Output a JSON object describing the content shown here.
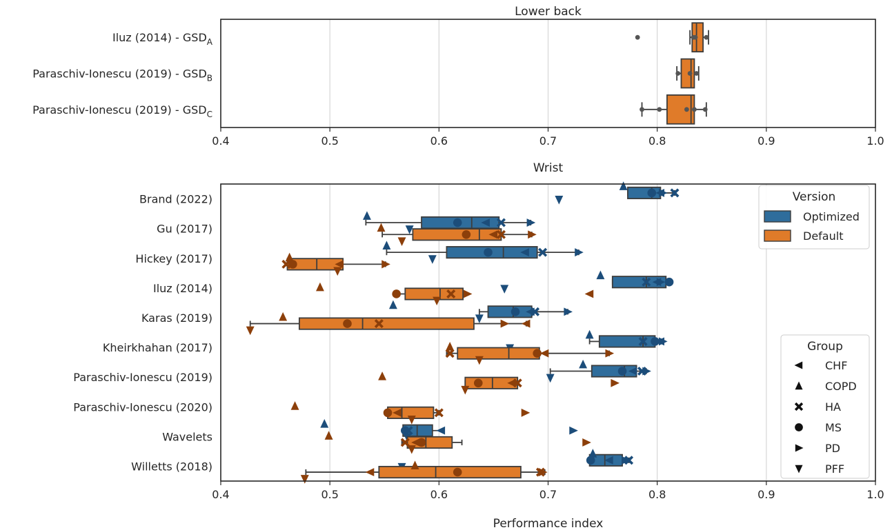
{
  "colors": {
    "optimized": "#2f6d9c",
    "default": "#e07b29",
    "optimized_marker": "#1c4d7a",
    "default_marker": "#8c3f0a",
    "lower_back_marker": "#555555",
    "grid": "#d6d6d6",
    "box_edge": "#3d3d3d"
  },
  "chart_data": [
    {
      "type": "box",
      "title": "Lower back",
      "xlabel": "",
      "xlim": [
        0.4,
        1.0
      ],
      "xticks": [
        "0.4",
        "0.5",
        "0.6",
        "0.7",
        "0.8",
        "0.9",
        "1.0"
      ],
      "categories": [
        {
          "name": "Iluz (2014) - GSD",
          "sub": "A"
        },
        {
          "name": "Paraschiv-Ionescu (2019) - GSD",
          "sub": "B"
        },
        {
          "name": "Paraschiv-Ionescu (2019) - GSD",
          "sub": "C"
        }
      ],
      "boxes": [
        {
          "whisker_low": 0.83,
          "q1": 0.832,
          "median": 0.836,
          "q3": 0.842,
          "whisker_high": 0.847,
          "points": [
            0.782,
            0.833,
            0.835,
            0.845
          ]
        },
        {
          "whisker_low": 0.818,
          "q1": 0.822,
          "median": 0.831,
          "q3": 0.834,
          "whisker_high": 0.838,
          "points": [
            0.819,
            0.83,
            0.836
          ]
        },
        {
          "whisker_low": 0.786,
          "q1": 0.809,
          "median": 0.831,
          "q3": 0.834,
          "whisker_high": 0.845,
          "points": [
            0.786,
            0.802,
            0.827,
            0.834,
            0.844
          ]
        }
      ]
    },
    {
      "type": "box",
      "title": "Wrist",
      "xlabel": "Performance index",
      "xlim": [
        0.4,
        1.0
      ],
      "xticks": [
        "0.4",
        "0.5",
        "0.6",
        "0.7",
        "0.8",
        "0.9",
        "1.0"
      ],
      "categories": [
        "Brand (2022)",
        "Gu (2017)",
        "Hickey (2017)",
        "Iluz (2014)",
        "Karas (2019)",
        "Kheirkhahan (2017)",
        "Paraschiv-Ionescu (2019)",
        "Paraschiv-Ionescu (2020)",
        "Wavelets",
        "Willetts (2018)"
      ],
      "series": [
        {
          "name": "Optimized",
          "boxes": [
            {
              "whisker_low": 0.773,
              "q1": 0.773,
              "median": 0.795,
              "q3": 0.803,
              "whisker_high": 0.816,
              "points": {
                "CHF": 0.803,
                "COPD": 0.769,
                "HA": 0.816,
                "MS": 0.795,
                "PD": 0.805,
                "PFF": 0.71
              }
            },
            {
              "whisker_low": 0.533,
              "q1": 0.584,
              "median": 0.63,
              "q3": 0.655,
              "whisker_high": 0.684,
              "points": {
                "CHF": 0.643,
                "COPD": 0.534,
                "HA": 0.657,
                "MS": 0.617,
                "PD": 0.684,
                "PFF": 0.573
              }
            },
            {
              "whisker_low": 0.552,
              "q1": 0.607,
              "median": 0.659,
              "q3": 0.69,
              "whisker_high": 0.728,
              "points": {
                "CHF": 0.679,
                "COPD": 0.552,
                "HA": 0.695,
                "MS": 0.645,
                "PD": 0.728,
                "PFF": 0.594
              }
            },
            {
              "whisker_low": 0.759,
              "q1": 0.759,
              "median": 0.79,
              "q3": 0.808,
              "whisker_high": 0.811,
              "points": {
                "CHF": 0.8,
                "COPD": 0.748,
                "HA": 0.79,
                "MS": 0.811,
                "PD": 0.803,
                "PFF": 0.66
              }
            },
            {
              "whisker_low": 0.637,
              "q1": 0.645,
              "median": 0.668,
              "q3": 0.685,
              "whisker_high": 0.718,
              "points": {
                "CHF": 0.684,
                "COPD": 0.558,
                "HA": 0.688,
                "MS": 0.67,
                "PD": 0.718,
                "PFF": 0.637
              }
            },
            {
              "whisker_low": 0.738,
              "q1": 0.747,
              "median": 0.787,
              "q3": 0.798,
              "whisker_high": 0.805,
              "points": {
                "CHF": 0.803,
                "COPD": 0.738,
                "HA": 0.787,
                "MS": 0.798,
                "PD": 0.805,
                "PFF": 0.665
              }
            },
            {
              "whisker_low": 0.702,
              "q1": 0.74,
              "median": 0.77,
              "q3": 0.781,
              "whisker_high": 0.79,
              "points": {
                "CHF": 0.778,
                "COPD": 0.732,
                "HA": 0.786,
                "MS": 0.768,
                "PD": 0.79,
                "PFF": 0.702
              }
            },
            {
              "whisker_low": null,
              "q1": null,
              "median": null,
              "q3": null,
              "whisker_high": null,
              "points": {}
            },
            {
              "whisker_low": 0.567,
              "q1": 0.567,
              "median": 0.58,
              "q3": 0.594,
              "whisker_high": 0.604,
              "points": {
                "CHF": 0.602,
                "COPD": 0.495,
                "HA": 0.572,
                "MS": 0.569,
                "PD": 0.723,
                "PFF": 0.571
              }
            },
            {
              "whisker_low": 0.738,
              "q1": 0.738,
              "median": 0.752,
              "q3": 0.768,
              "whisker_high": 0.774,
              "points": {
                "CHF": 0.756,
                "COPD": 0.741,
                "HA": 0.774,
                "MS": 0.739,
                "PD": 0.771,
                "PFF": 0.566
              }
            }
          ]
        },
        {
          "name": "Default",
          "boxes": [
            {
              "whisker_low": null,
              "q1": null,
              "median": null,
              "q3": null,
              "whisker_high": null,
              "points": {}
            },
            {
              "whisker_low": 0.548,
              "q1": 0.576,
              "median": 0.637,
              "q3": 0.657,
              "whisker_high": 0.685,
              "points": {
                "CHF": 0.65,
                "COPD": 0.547,
                "HA": 0.657,
                "MS": 0.625,
                "PD": 0.685,
                "PFF": 0.566
              }
            },
            {
              "whisker_low": 0.461,
              "q1": 0.461,
              "median": 0.488,
              "q3": 0.512,
              "whisker_high": 0.551,
              "points": {
                "CHF": 0.509,
                "COPD": 0.463,
                "HA": 0.46,
                "MS": 0.466,
                "PD": 0.551,
                "PFF": 0.507
              }
            },
            {
              "whisker_low": 0.561,
              "q1": 0.569,
              "median": 0.601,
              "q3": 0.622,
              "whisker_high": 0.622,
              "points": {
                "CHF": 0.738,
                "COPD": 0.491,
                "HA": 0.611,
                "MS": 0.561,
                "PD": 0.626,
                "PFF": 0.598
              }
            },
            {
              "whisker_low": 0.427,
              "q1": 0.472,
              "median": 0.53,
              "q3": 0.632,
              "whisker_high": 0.68,
              "points": {
                "CHF": 0.68,
                "COPD": 0.457,
                "HA": 0.545,
                "MS": 0.516,
                "PD": 0.66,
                "PFF": 0.427
              }
            },
            {
              "whisker_low": 0.607,
              "q1": 0.617,
              "median": 0.664,
              "q3": 0.692,
              "whisker_high": 0.756,
              "points": {
                "CHF": 0.697,
                "COPD": 0.61,
                "HA": 0.61,
                "MS": 0.69,
                "PD": 0.756,
                "PFF": 0.637
              }
            },
            {
              "whisker_low": 0.624,
              "q1": 0.624,
              "median": 0.649,
              "q3": 0.672,
              "whisker_high": 0.672,
              "points": {
                "CHF": 0.667,
                "COPD": 0.548,
                "HA": 0.672,
                "MS": 0.636,
                "PD": 0.761,
                "PFF": 0.624
              }
            },
            {
              "whisker_low": 0.553,
              "q1": 0.553,
              "median": 0.566,
              "q3": 0.595,
              "whisker_high": 0.6,
              "points": {
                "CHF": 0.562,
                "COPD": 0.468,
                "HA": 0.6,
                "MS": 0.553,
                "PD": 0.679,
                "PFF": 0.575
              }
            },
            {
              "whisker_low": 0.566,
              "q1": 0.571,
              "median": 0.588,
              "q3": 0.612,
              "whisker_high": 0.621,
              "points": {
                "CHF": 0.579,
                "COPD": 0.499,
                "HA": 0.569,
                "MS": 0.584,
                "PD": 0.735,
                "PFF": 0.575
              }
            },
            {
              "whisker_low": 0.478,
              "q1": 0.545,
              "median": 0.597,
              "q3": 0.675,
              "whisker_high": 0.697,
              "points": {
                "CHF": 0.537,
                "COPD": 0.578,
                "HA": 0.693,
                "MS": 0.617,
                "PD": 0.695,
                "PFF": 0.477
              }
            }
          ]
        }
      ],
      "legends": [
        {
          "title": "Version",
          "placement": "top-right",
          "items": [
            {
              "label": "Optimized",
              "color_key": "optimized"
            },
            {
              "label": "Default",
              "color_key": "default"
            }
          ]
        },
        {
          "title": "Group",
          "placement": "bottom-right",
          "items": [
            {
              "label": "CHF",
              "marker": "triangle-left"
            },
            {
              "label": "COPD",
              "marker": "triangle-up"
            },
            {
              "label": "HA",
              "marker": "x-thick"
            },
            {
              "label": "MS",
              "marker": "circle"
            },
            {
              "label": "PD",
              "marker": "triangle-right"
            },
            {
              "label": "PFF",
              "marker": "triangle-down"
            }
          ]
        }
      ]
    }
  ]
}
